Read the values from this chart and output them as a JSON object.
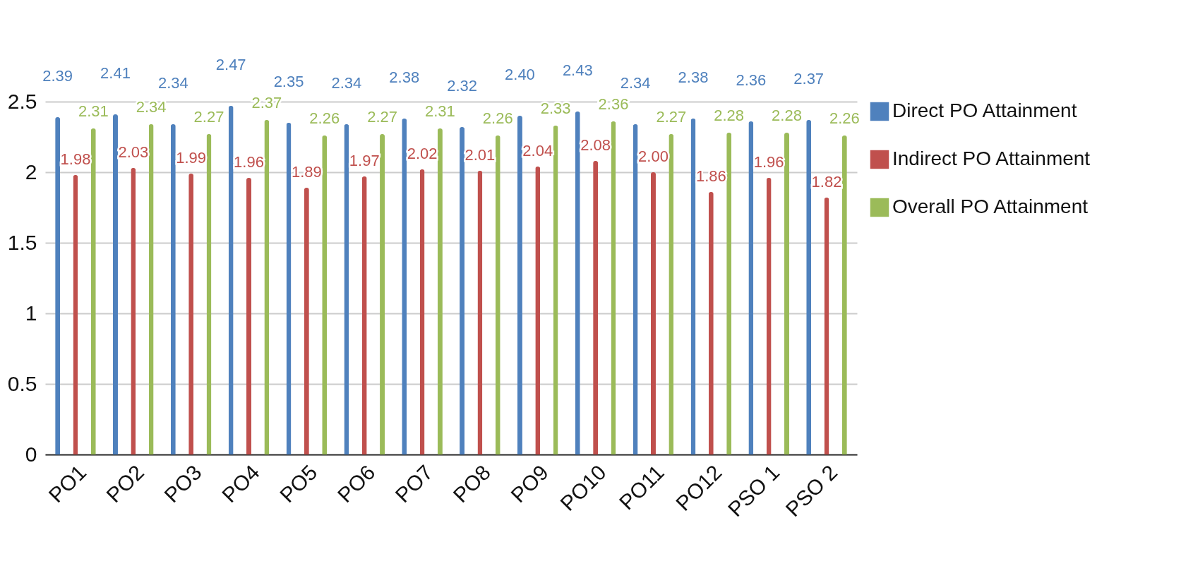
{
  "chart_data": {
    "type": "bar",
    "categories": [
      "PO1",
      "PO2",
      "PO3",
      "PO4",
      "PO5",
      "PO6",
      "PO7",
      "PO8",
      "PO9",
      "PO10",
      "PO11",
      "PO12",
      "PSO 1",
      "PSO 2"
    ],
    "series": [
      {
        "name": "Direct PO Attainment",
        "color": "#4f81bd",
        "values": [
          2.39,
          2.41,
          2.34,
          2.47,
          2.35,
          2.34,
          2.38,
          2.32,
          2.4,
          2.43,
          2.34,
          2.38,
          2.36,
          2.37
        ],
        "value_labels": [
          "2.39",
          "2.41",
          "2.34",
          "2.47",
          "2.35",
          "2.34",
          "2.38",
          "2.32",
          "2.40",
          "2.43",
          "2.34",
          "2.38",
          "2.36",
          "2.37"
        ]
      },
      {
        "name": "Indirect PO Attainment",
        "color": "#c0504d",
        "values": [
          1.98,
          2.03,
          1.99,
          1.96,
          1.89,
          1.97,
          2.02,
          2.01,
          2.04,
          2.08,
          2.0,
          1.86,
          1.96,
          1.82
        ],
        "value_labels": [
          "1.98",
          "2.03",
          "1.99",
          "1.96",
          "1.89",
          "1.97",
          "2.02",
          "2.01",
          "2.04",
          "2.08",
          "2.00",
          "1.86",
          "1.96",
          "1.82"
        ]
      },
      {
        "name": "Overall PO Attainment",
        "color": "#9bbb59",
        "values": [
          2.31,
          2.34,
          2.27,
          2.37,
          2.26,
          2.27,
          2.31,
          2.26,
          2.33,
          2.36,
          2.27,
          2.28,
          2.28,
          2.26
        ],
        "value_labels": [
          "2.31",
          "2.34",
          "2.27",
          "2.37",
          "2.26",
          "2.27",
          "2.31",
          "2.26",
          "2.33",
          "2.36",
          "2.27",
          "2.28",
          "2.28",
          "2.26"
        ]
      }
    ],
    "ylim": [
      0,
      2.5
    ],
    "yticks": [
      0,
      0.5,
      1,
      1.5,
      2,
      2.5
    ],
    "grid": "y",
    "legend": "right"
  }
}
